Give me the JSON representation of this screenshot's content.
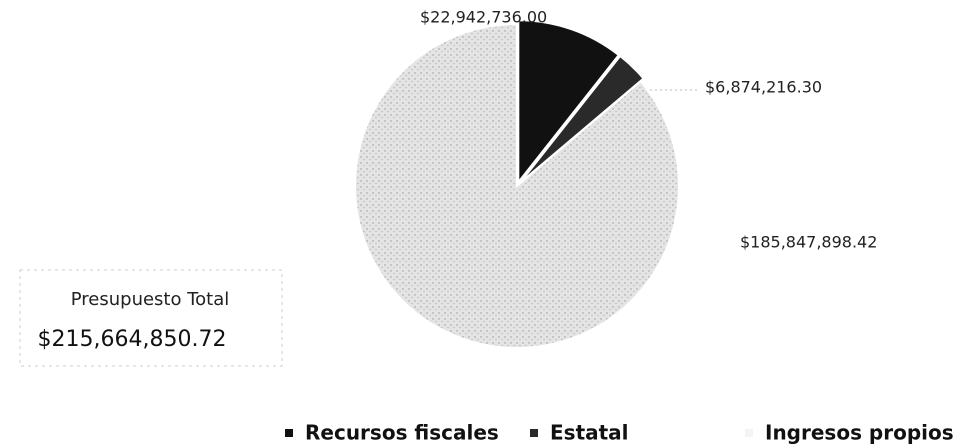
{
  "chart_data": {
    "type": "pie",
    "categories": [
      "Recursos fiscales",
      "Estatal",
      "Ingresos propios"
    ],
    "values": [
      22942736.0,
      6874216.3,
      185847898.42
    ],
    "value_labels": [
      "$22,942,736.00",
      "$6,874,216.30",
      "$185,847,898.42"
    ],
    "colors": [
      "#111111",
      "#2a2a2a",
      "#dcdcdc"
    ],
    "annotations": [
      "Presupuesto Total",
      "$215,664,850.72"
    ],
    "legend": "bottom"
  }
}
